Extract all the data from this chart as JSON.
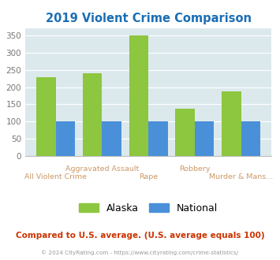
{
  "title": "2019 Violent Crime Comparison",
  "alaska_values": [
    229,
    240,
    349,
    137,
    188
  ],
  "national_values": [
    100,
    100,
    100,
    100,
    100
  ],
  "alaska_color": "#8dc63f",
  "national_color": "#4a90d9",
  "bg_color": "#dce9ec",
  "ylim": [
    0,
    370
  ],
  "yticks": [
    0,
    50,
    100,
    150,
    200,
    250,
    300,
    350
  ],
  "subtitle": "Compared to U.S. average. (U.S. average equals 100)",
  "footer": "© 2024 CityRating.com - https://www.cityrating.com/crime-statistics/",
  "title_color": "#1a6eb5",
  "subtitle_color": "#cc3300",
  "footer_color": "#999999",
  "label_color": "#cc9966",
  "top_row_labels": [
    {
      "x": 1,
      "text": "Aggravated Assault"
    },
    {
      "x": 3,
      "text": "Robbery"
    }
  ],
  "bottom_row_labels": [
    {
      "x": 0,
      "text": "All Violent Crime"
    },
    {
      "x": 2,
      "text": "Rape"
    },
    {
      "x": 4,
      "text": "Murder & Mans..."
    }
  ]
}
